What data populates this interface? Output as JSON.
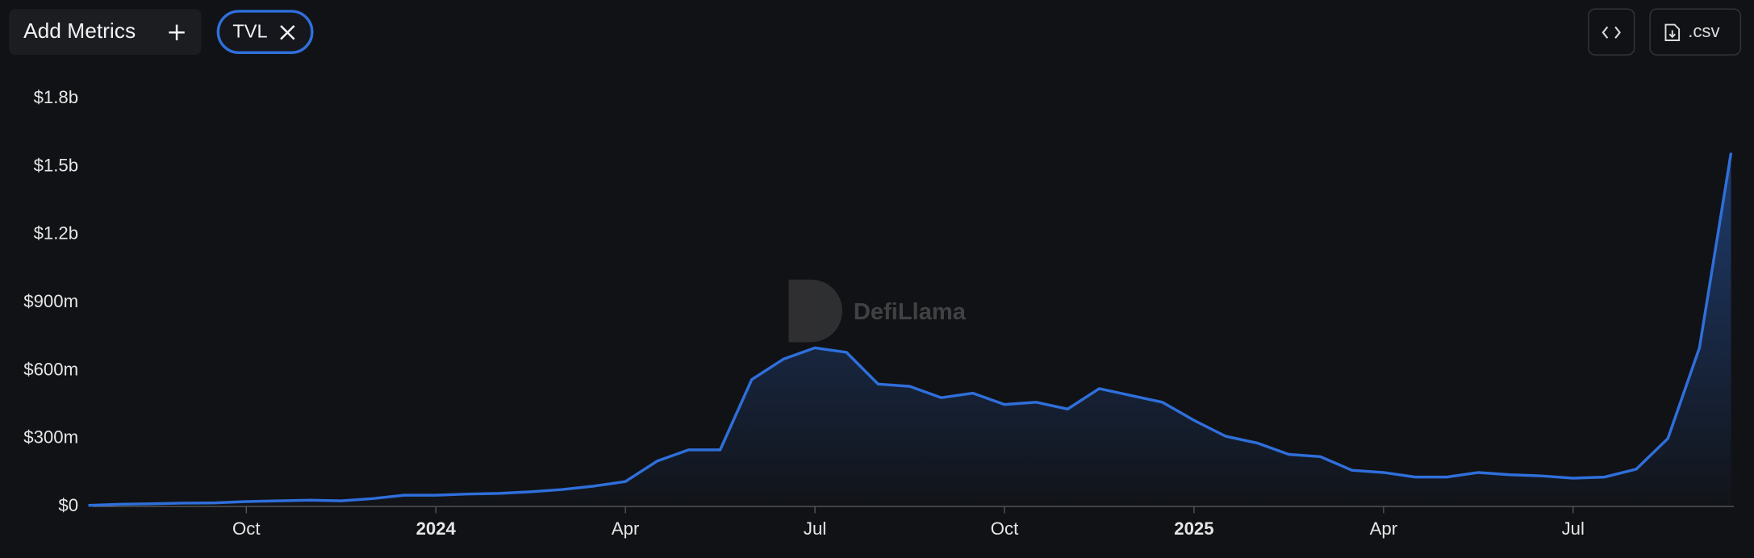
{
  "toolbar": {
    "add_metrics": "Add Metrics",
    "metric_chip": "TVL",
    "csv_button": ".csv"
  },
  "chart_data": {
    "type": "line",
    "watermark": "DefiLlama",
    "color": "#2f6fdb",
    "grid": false,
    "categories": [
      null,
      null,
      null,
      null,
      null,
      "Oct",
      null,
      null,
      null,
      null,
      null,
      "2024",
      null,
      null,
      null,
      null,
      null,
      "Apr",
      null,
      null,
      null,
      null,
      null,
      "Jul",
      null,
      null,
      null,
      null,
      null,
      "Oct",
      null,
      null,
      null,
      null,
      null,
      "2025",
      null,
      null,
      null,
      null,
      null,
      "Apr",
      null,
      null,
      null,
      null,
      null,
      "Jul",
      null,
      null,
      null,
      null,
      null
    ],
    "bold_categories": [
      "2024",
      "2025"
    ],
    "values": [
      5000000,
      10000000,
      12000000,
      15000000,
      16000000,
      22000000,
      25000000,
      28000000,
      25000000,
      35000000,
      50000000,
      50000000,
      55000000,
      58000000,
      65000000,
      75000000,
      90000000,
      110000000,
      200000000,
      250000000,
      250000000,
      560000000,
      650000000,
      700000000,
      680000000,
      540000000,
      530000000,
      480000000,
      500000000,
      450000000,
      460000000,
      430000000,
      520000000,
      490000000,
      460000000,
      380000000,
      310000000,
      280000000,
      230000000,
      220000000,
      160000000,
      150000000,
      130000000,
      130000000,
      150000000,
      140000000,
      135000000,
      125000000,
      130000000,
      165000000,
      300000000,
      700000000,
      1560000000
    ],
    "ylim": [
      0,
      1800000000
    ],
    "yticks": [
      {
        "value": 0,
        "label": "$0"
      },
      {
        "value": 300000000,
        "label": "$300m"
      },
      {
        "value": 600000000,
        "label": "$600m"
      },
      {
        "value": 900000000,
        "label": "$900m"
      },
      {
        "value": 1200000000,
        "label": "$1.2b"
      },
      {
        "value": 1500000000,
        "label": "$1.5b"
      },
      {
        "value": 1800000000,
        "label": "$1.8b"
      }
    ]
  }
}
